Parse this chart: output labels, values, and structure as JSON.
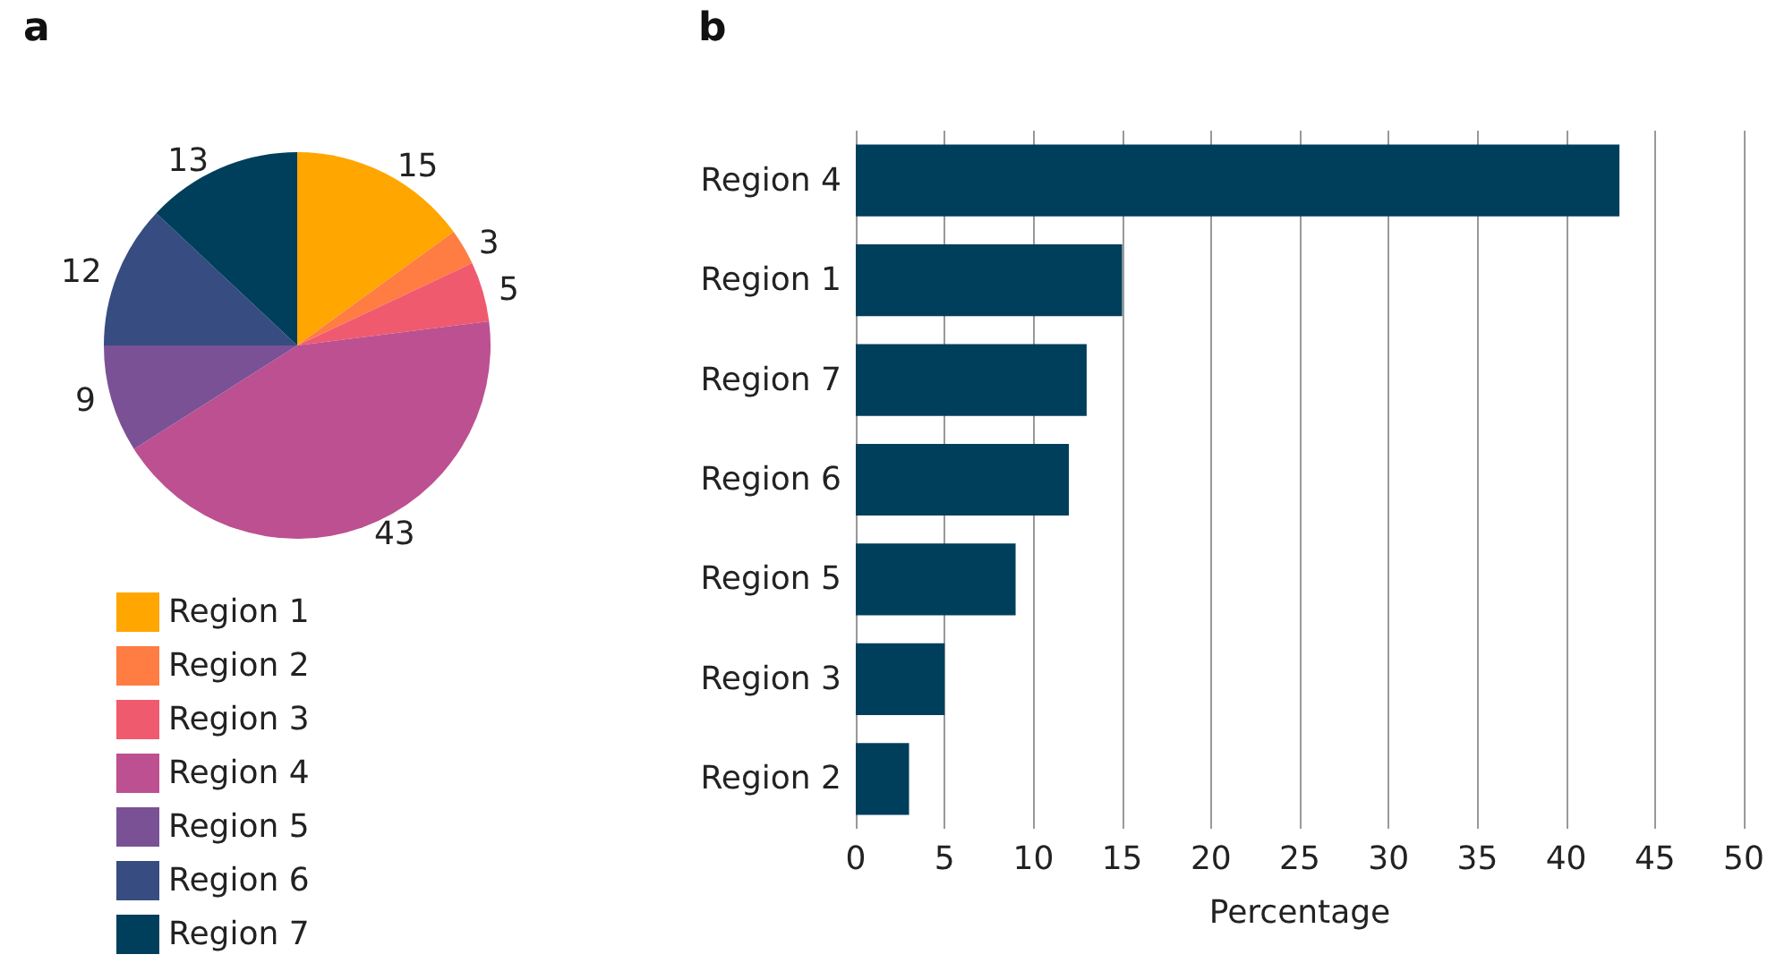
{
  "chart_data": [
    {
      "type": "pie",
      "title": "a",
      "categories": [
        "Region 1",
        "Region 2",
        "Region 3",
        "Region 4",
        "Region 5",
        "Region 6",
        "Region 7"
      ],
      "values": [
        15,
        3,
        5,
        43,
        9,
        12,
        13
      ],
      "colors": [
        "#ffa600",
        "#ff7c43",
        "#f05a6e",
        "#bc5090",
        "#7a5195",
        "#374c80",
        "#003f5c"
      ],
      "data_labels": true,
      "legend": "bottom"
    },
    {
      "type": "bar",
      "title": "b",
      "orientation": "horizontal",
      "categories": [
        "Region 4",
        "Region 1",
        "Region 7",
        "Region 6",
        "Region 5",
        "Region 3",
        "Region 2"
      ],
      "values": [
        43,
        15,
        13,
        12,
        9,
        5,
        3
      ],
      "color": "#003f5c",
      "xlim": [
        0,
        50
      ],
      "xticks": [
        0,
        5,
        10,
        15,
        20,
        25,
        30,
        35,
        40,
        45,
        50
      ],
      "xlabel": "Percentage",
      "grid": "x"
    }
  ]
}
